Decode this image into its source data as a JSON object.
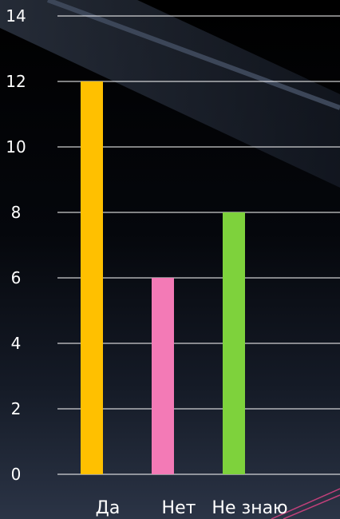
{
  "chart_data": {
    "type": "bar",
    "categories": [
      "Да",
      "Нет",
      "Не знаю"
    ],
    "series": [
      {
        "values": [
          12,
          6,
          8
        ]
      }
    ],
    "bar_colors": [
      "#ffc000",
      "#f37ab6",
      "#7ed23c"
    ],
    "ylim": [
      0,
      14
    ],
    "yticks": [
      0,
      2,
      4,
      6,
      8,
      10,
      12,
      14
    ],
    "grid": true,
    "title": "",
    "xlabel": "",
    "ylabel": ""
  }
}
